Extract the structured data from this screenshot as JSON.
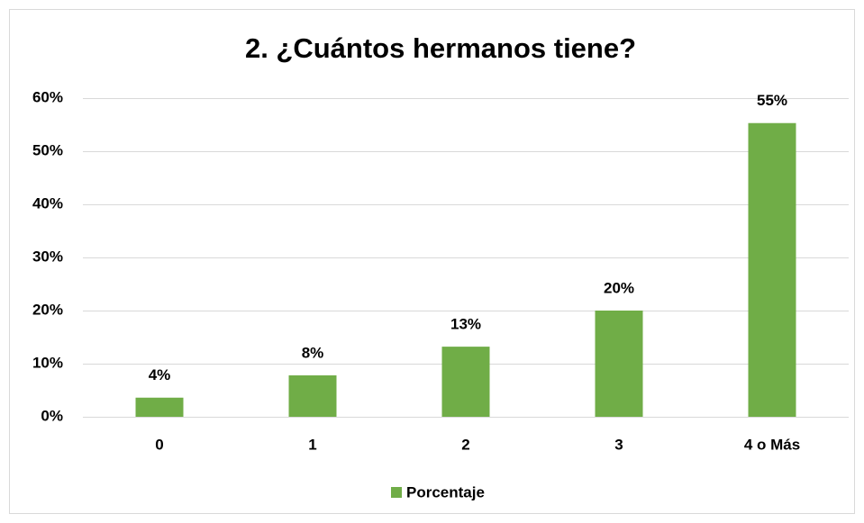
{
  "chart_data": {
    "type": "bar",
    "title": "2. ¿Cuántos hermanos tiene?",
    "categories": [
      "0",
      "1",
      "2",
      "3",
      "4 o Más"
    ],
    "series": [
      {
        "name": "Porcentaje",
        "color": "#70ad47",
        "values": [
          3.6,
          7.8,
          13.2,
          20,
          55.3
        ],
        "value_labels": [
          "4%",
          "8%",
          "13%",
          "20%",
          "55%"
        ]
      }
    ],
    "ylim": [
      0,
      60
    ],
    "yticks": [
      {
        "value": 0,
        "label": "0%"
      },
      {
        "value": 10,
        "label": "10%"
      },
      {
        "value": 20,
        "label": "20%"
      },
      {
        "value": 30,
        "label": "30%"
      },
      {
        "value": 40,
        "label": "40%"
      },
      {
        "value": 50,
        "label": "50%"
      },
      {
        "value": 60,
        "label": "60%"
      }
    ],
    "grid": true,
    "legend": "bottom"
  }
}
